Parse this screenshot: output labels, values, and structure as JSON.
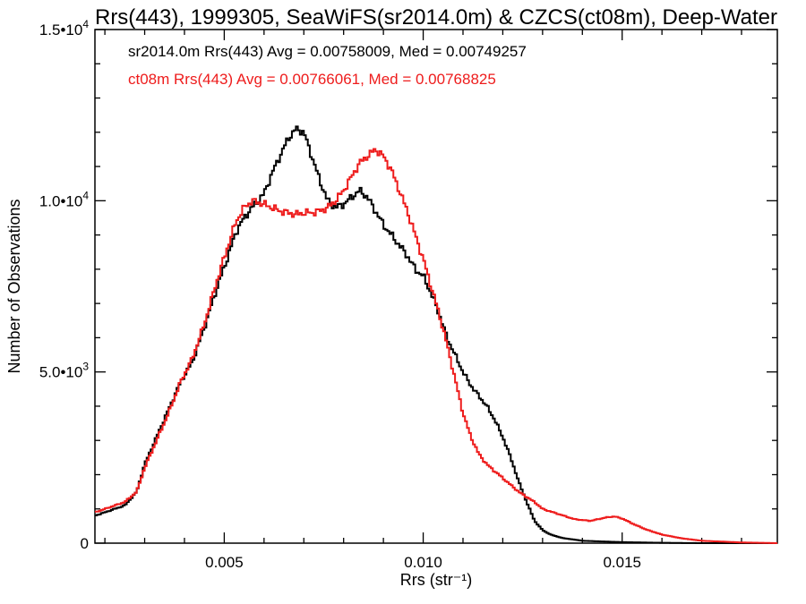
{
  "chart_data": {
    "type": "line",
    "title": "Rrs(443), 1999305, SeaWiFS(sr2014.0m) & CZCS(ct08m), Deep-Water",
    "xlabel": "Rrs (str⁻¹)",
    "ylabel": "Number of Observations",
    "xlim": [
      0.00175,
      0.0189
    ],
    "ylim": [
      0,
      15000
    ],
    "x_ticks": [
      0.005,
      0.01,
      0.015
    ],
    "x_tick_labels": [
      "0.005",
      "0.010",
      "0.015"
    ],
    "y_ticks": [
      0,
      5000,
      10000,
      15000
    ],
    "y_tick_labels": [
      {
        "base": "0",
        "exp": ""
      },
      {
        "base": "5.0•10",
        "exp": "3"
      },
      {
        "base": "1.0•10",
        "exp": "4"
      },
      {
        "base": "1.5•10",
        "exp": "4"
      }
    ],
    "grid": false,
    "series": [
      {
        "name": "sr2014.0m",
        "color": "#000000",
        "stat_text": "sr2014.0m Rrs(443) Avg = 0.00758009, Med = 0.00749257",
        "points": [
          [
            0.00175,
            800
          ],
          [
            0.0025,
            1100
          ],
          [
            0.0028,
            1500
          ],
          [
            0.003,
            2300
          ],
          [
            0.0033,
            3100
          ],
          [
            0.0036,
            3900
          ],
          [
            0.0039,
            4700
          ],
          [
            0.0042,
            5300
          ],
          [
            0.0045,
            6300
          ],
          [
            0.0048,
            7400
          ],
          [
            0.0051,
            8400
          ],
          [
            0.0053,
            9100
          ],
          [
            0.0055,
            9500
          ],
          [
            0.0057,
            9800
          ],
          [
            0.006,
            10200
          ],
          [
            0.0062,
            10800
          ],
          [
            0.0064,
            11300
          ],
          [
            0.0066,
            11800
          ],
          [
            0.0068,
            12100
          ],
          [
            0.007,
            12000
          ],
          [
            0.0072,
            11300
          ],
          [
            0.0074,
            10600
          ],
          [
            0.0076,
            10000
          ],
          [
            0.0078,
            9800
          ],
          [
            0.008,
            9900
          ],
          [
            0.0082,
            10100
          ],
          [
            0.0084,
            10300
          ],
          [
            0.0086,
            10100
          ],
          [
            0.0088,
            9700
          ],
          [
            0.009,
            9300
          ],
          [
            0.0092,
            9000
          ],
          [
            0.0094,
            8700
          ],
          [
            0.0096,
            8400
          ],
          [
            0.0098,
            8000
          ],
          [
            0.01,
            7800
          ],
          [
            0.0102,
            7300
          ],
          [
            0.0104,
            6700
          ],
          [
            0.0106,
            6000
          ],
          [
            0.0108,
            5500
          ],
          [
            0.011,
            5000
          ],
          [
            0.0112,
            4600
          ],
          [
            0.0114,
            4300
          ],
          [
            0.0116,
            4000
          ],
          [
            0.0118,
            3600
          ],
          [
            0.012,
            3100
          ],
          [
            0.0122,
            2500
          ],
          [
            0.0124,
            1800
          ],
          [
            0.0126,
            1200
          ],
          [
            0.0128,
            650
          ],
          [
            0.013,
            380
          ],
          [
            0.0132,
            250
          ],
          [
            0.0135,
            150
          ],
          [
            0.014,
            70
          ],
          [
            0.015,
            30
          ],
          [
            0.016,
            10
          ],
          [
            0.017,
            0
          ],
          [
            0.0189,
            0
          ]
        ]
      },
      {
        "name": "ct08m",
        "color": "#ee1c1c",
        "stat_text": "ct08m Rrs(443) Avg = 0.00766061, Med = 0.00768825",
        "points": [
          [
            0.00175,
            900
          ],
          [
            0.0025,
            1200
          ],
          [
            0.0028,
            1500
          ],
          [
            0.003,
            2200
          ],
          [
            0.0033,
            3000
          ],
          [
            0.0036,
            3800
          ],
          [
            0.0039,
            4700
          ],
          [
            0.0042,
            5400
          ],
          [
            0.0045,
            6400
          ],
          [
            0.0048,
            7600
          ],
          [
            0.0051,
            8700
          ],
          [
            0.0053,
            9400
          ],
          [
            0.0055,
            9800
          ],
          [
            0.0057,
            10000
          ],
          [
            0.006,
            9900
          ],
          [
            0.0062,
            9800
          ],
          [
            0.0064,
            9700
          ],
          [
            0.0066,
            9650
          ],
          [
            0.0068,
            9600
          ],
          [
            0.007,
            9650
          ],
          [
            0.0072,
            9650
          ],
          [
            0.0074,
            9700
          ],
          [
            0.0076,
            9800
          ],
          [
            0.0078,
            10000
          ],
          [
            0.008,
            10300
          ],
          [
            0.0082,
            10700
          ],
          [
            0.0084,
            11100
          ],
          [
            0.0086,
            11300
          ],
          [
            0.0088,
            11500
          ],
          [
            0.009,
            11300
          ],
          [
            0.0092,
            10900
          ],
          [
            0.0094,
            10300
          ],
          [
            0.0096,
            9700
          ],
          [
            0.0098,
            9000
          ],
          [
            0.01,
            8300
          ],
          [
            0.0102,
            7500
          ],
          [
            0.0104,
            6700
          ],
          [
            0.0106,
            5800
          ],
          [
            0.0108,
            4800
          ],
          [
            0.011,
            3800
          ],
          [
            0.0112,
            3100
          ],
          [
            0.0114,
            2600
          ],
          [
            0.0116,
            2300
          ],
          [
            0.0118,
            2100
          ],
          [
            0.012,
            1900
          ],
          [
            0.0122,
            1700
          ],
          [
            0.0124,
            1500
          ],
          [
            0.0126,
            1350
          ],
          [
            0.0128,
            1200
          ],
          [
            0.013,
            1000
          ],
          [
            0.0134,
            850
          ],
          [
            0.0138,
            700
          ],
          [
            0.0142,
            650
          ],
          [
            0.0146,
            750
          ],
          [
            0.0148,
            780
          ],
          [
            0.015,
            720
          ],
          [
            0.0153,
            550
          ],
          [
            0.0156,
            400
          ],
          [
            0.016,
            250
          ],
          [
            0.0165,
            140
          ],
          [
            0.017,
            70
          ],
          [
            0.018,
            20
          ],
          [
            0.0189,
            0
          ]
        ]
      }
    ]
  }
}
